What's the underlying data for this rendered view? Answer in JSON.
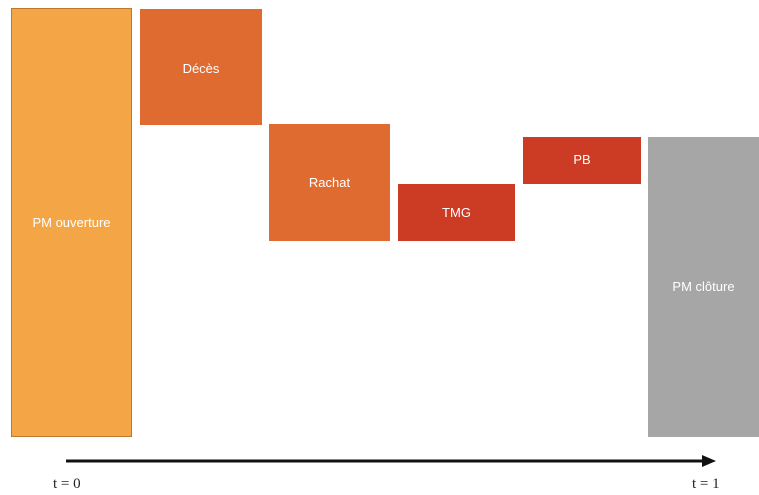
{
  "colors": {
    "pm_ouverture": "#f4a646",
    "deces": "#df6b30",
    "rachat": "#df6b30",
    "tmg": "#cc3b24",
    "pb": "#cc3b24",
    "pm_cloture": "#a6a6a6",
    "arrow": "#111111"
  },
  "blocks": {
    "pm_ouverture": "PM ouverture",
    "deces": "Décès",
    "rachat": "Rachat",
    "tmg": "TMG",
    "pb": "PB",
    "pm_cloture": "PM clôture"
  },
  "timeline": {
    "start_label": "t = 0",
    "end_label": "t = 1"
  }
}
